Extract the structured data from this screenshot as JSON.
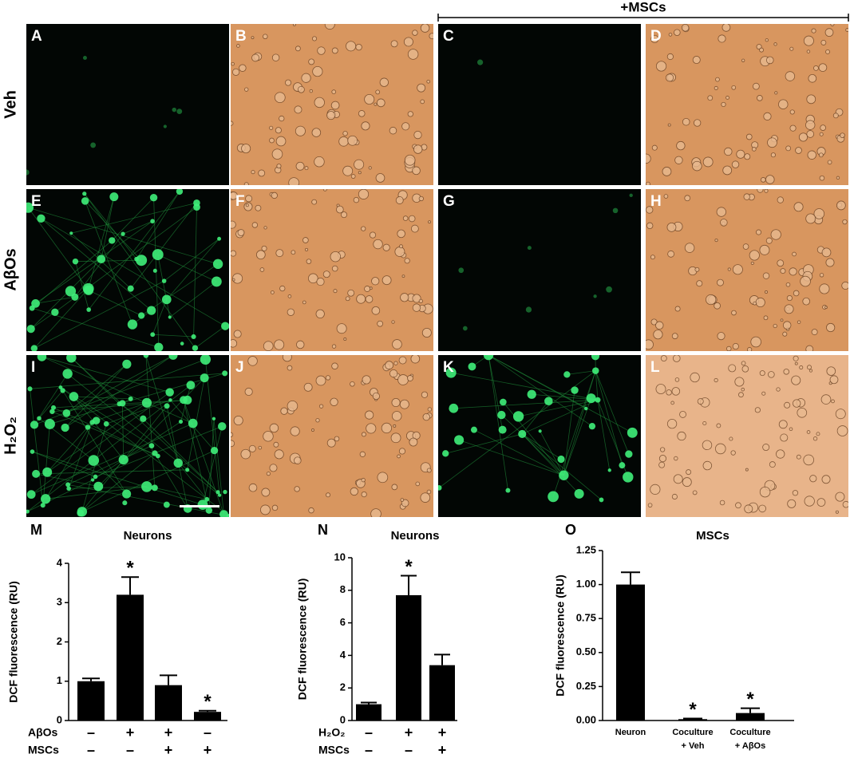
{
  "figure": {
    "header": "+MSCs",
    "row_labels": [
      "Veh",
      "AβOs",
      "H₂O₂"
    ],
    "panel_labels": [
      "A",
      "B",
      "C",
      "D",
      "E",
      "F",
      "G",
      "H",
      "I",
      "J",
      "K",
      "L"
    ]
  },
  "chart_data": [
    {
      "type": "bar",
      "panel": "M",
      "title": "Neurons",
      "y_label": "DCF fluorescence (RU)",
      "values": [
        1.0,
        3.2,
        0.9,
        0.22
      ],
      "errors": [
        0.07,
        0.45,
        0.25,
        0.03
      ],
      "color": "#000000",
      "significance": [
        null,
        "*",
        null,
        "*"
      ],
      "conditions": [
        {
          "name": "AβOs",
          "values": [
            "–",
            "+",
            "+",
            "–"
          ]
        },
        {
          "name": "MSCs",
          "values": [
            "–",
            "–",
            "+",
            "+"
          ]
        }
      ],
      "ylim": [
        0,
        4
      ],
      "yticks": [
        0,
        1,
        2,
        3,
        4
      ]
    },
    {
      "type": "bar",
      "panel": "N",
      "title": "Neurons",
      "y_label": "DCF fluorescence (RU)",
      "values": [
        1.0,
        7.7,
        3.4
      ],
      "errors": [
        0.1,
        1.2,
        0.65
      ],
      "color": "#000000",
      "significance": [
        null,
        "*",
        null
      ],
      "conditions": [
        {
          "name": "H₂O₂",
          "values": [
            "–",
            "+",
            "+"
          ]
        },
        {
          "name": "MSCs",
          "values": [
            "–",
            "–",
            "+"
          ]
        }
      ],
      "ylim": [
        0,
        10
      ],
      "yticks": [
        0,
        2,
        4,
        6,
        8,
        10
      ]
    },
    {
      "type": "bar",
      "panel": "O",
      "title": "MSCs",
      "y_label": "DCF fluorescence (RU)",
      "categories": [
        [
          "Neuron"
        ],
        [
          "Coculture",
          "+ Veh"
        ],
        [
          "Coculture",
          "+ AβOs"
        ]
      ],
      "values": [
        1.0,
        0.01,
        0.055
      ],
      "errors": [
        0.09,
        0.005,
        0.035
      ],
      "color": "#000000",
      "significance": [
        null,
        "*",
        "*"
      ],
      "ylim": [
        0,
        1.25
      ],
      "yticks": [
        {
          "value": 0,
          "label": "0.00"
        },
        {
          "value": 0.25,
          "label": "0.25"
        },
        {
          "value": 0.5,
          "label": "0.50"
        },
        {
          "value": 0.75,
          "label": "0.75"
        },
        {
          "value": 1,
          "label": "1.00"
        },
        {
          "value": 1.25,
          "label": "1.25"
        }
      ]
    }
  ]
}
